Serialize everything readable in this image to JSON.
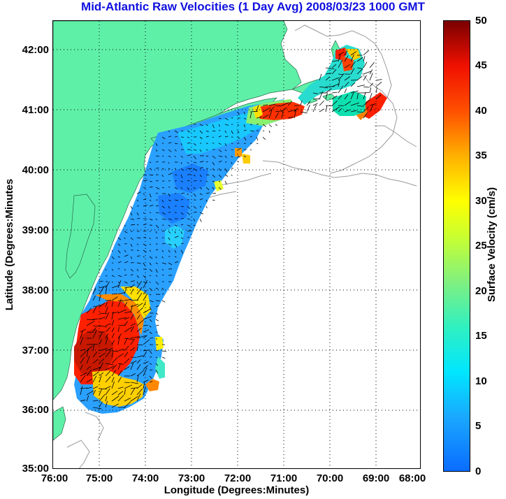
{
  "title": "Mid-Atlantic Raw Velocities (1 Day Avg) 2008/03/23 1000 GMT",
  "axes": {
    "x_label": "Longitude (Degrees:Minutes)",
    "y_label": "Latitude (Degrees:Minutes",
    "x_ticks": [
      "76:00",
      "75:00",
      "74:00",
      "73:00",
      "72:00",
      "71:00",
      "70:00",
      "69:00",
      "68:00"
    ],
    "y_ticks": [
      "42:00",
      "41:00",
      "40:00",
      "39:00",
      "38:00",
      "37:00",
      "36:00",
      "35:00"
    ]
  },
  "colorbar": {
    "label": "Surface Velocity (cm/s)",
    "ticks": [
      "50",
      "45",
      "40",
      "35",
      "30",
      "25",
      "20",
      "15",
      "10",
      "5",
      "0"
    ],
    "range": [
      0,
      50
    ]
  },
  "colors": {
    "title": "#1010e0",
    "land": "#5ff0a8",
    "bathymetry": "#9a9a9a",
    "arrows": "#000000"
  }
}
